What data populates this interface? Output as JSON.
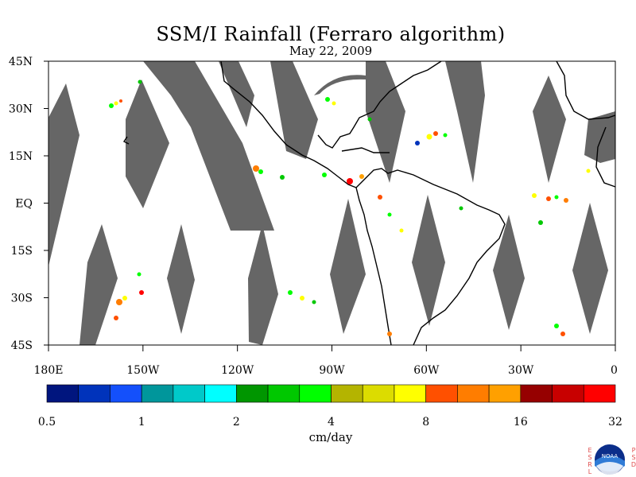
{
  "title": "SSM/I Rainfall (Ferraro algorithm)",
  "date": "May 22, 2009",
  "map": {
    "lon_range": [
      180,
      360
    ],
    "lat_range": [
      -45,
      45
    ],
    "lat_labels": [
      {
        "lat": 45,
        "text": "45N"
      },
      {
        "lat": 30,
        "text": "30N"
      },
      {
        "lat": 15,
        "text": "15N"
      },
      {
        "lat": 0,
        "text": "EQ"
      },
      {
        "lat": -15,
        "text": "15S"
      },
      {
        "lat": -30,
        "text": "30S"
      },
      {
        "lat": -45,
        "text": "45S"
      }
    ],
    "lon_labels": [
      {
        "lon": 180,
        "text": "180E"
      },
      {
        "lon": 210,
        "text": "150W"
      },
      {
        "lon": 240,
        "text": "120W"
      },
      {
        "lon": 270,
        "text": "90W"
      },
      {
        "lon": 300,
        "text": "60W"
      },
      {
        "lon": 330,
        "text": "30W"
      },
      {
        "lon": 360,
        "text": "0"
      }
    ],
    "no_data_color": "#666666",
    "coast_color": "#000000"
  },
  "colorbar": {
    "colors": [
      "#00157e",
      "#0033bb",
      "#1450fb",
      "#00969b",
      "#00c9c9",
      "#00ffff",
      "#009600",
      "#00c800",
      "#00ff00",
      "#b4b400",
      "#dcdc00",
      "#ffff00",
      "#ff5000",
      "#ff7d00",
      "#ffa000",
      "#960000",
      "#c80000",
      "#ff0000"
    ],
    "labels": [
      "0.5",
      "1",
      "2",
      "4",
      "8",
      "16",
      "32"
    ],
    "units": "cm/day"
  },
  "logo": {
    "left_letters": [
      "E",
      "S",
      "R",
      "L"
    ],
    "right_letters": [
      "P",
      "S",
      "D"
    ],
    "badge": "NOAA"
  }
}
